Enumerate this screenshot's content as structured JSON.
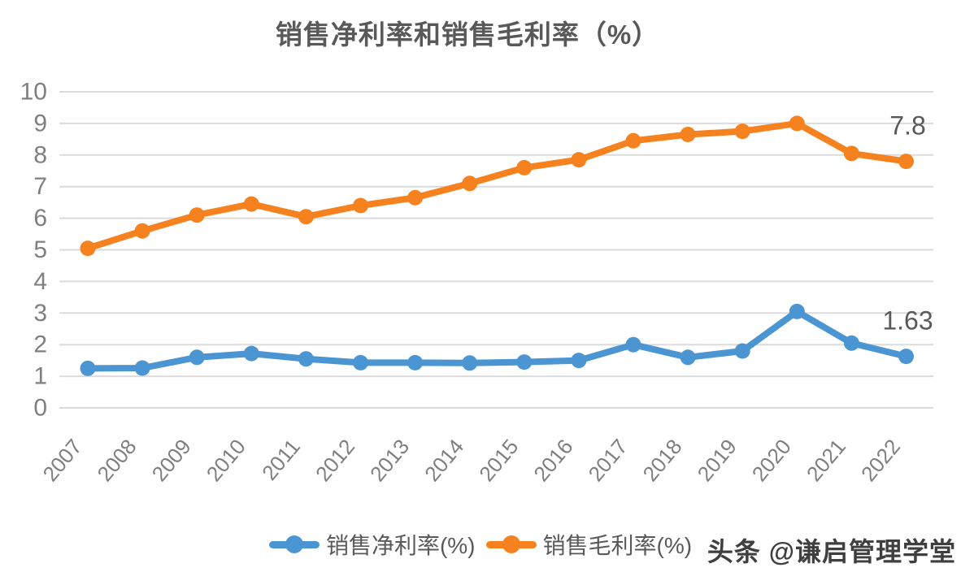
{
  "chart_data": {
    "type": "line",
    "title": "销售净利率和销售毛利率（%）",
    "categories": [
      "2007",
      "2008",
      "2009",
      "2010",
      "2011",
      "2012",
      "2013",
      "2014",
      "2015",
      "2016",
      "2017",
      "2018",
      "2019",
      "2020",
      "2021",
      "2022"
    ],
    "series": [
      {
        "name": "销售净利率(%)",
        "color": "#4B96D2",
        "values": [
          1.25,
          1.26,
          1.6,
          1.72,
          1.55,
          1.43,
          1.43,
          1.42,
          1.45,
          1.5,
          2.0,
          1.6,
          1.8,
          3.05,
          2.05,
          1.63
        ],
        "end_label": "1.63"
      },
      {
        "name": "销售毛利率(%)",
        "color": "#F5821F",
        "values": [
          5.05,
          5.6,
          6.1,
          6.45,
          6.05,
          6.4,
          6.65,
          7.1,
          7.6,
          7.85,
          8.45,
          8.65,
          8.75,
          9.0,
          8.05,
          7.8
        ],
        "end_label": "7.8"
      }
    ],
    "xlabel": "",
    "ylabel": "",
    "ylim": [
      0,
      10
    ],
    "y_ticks": [
      0,
      1,
      2,
      3,
      4,
      5,
      6,
      7,
      8,
      9,
      10
    ],
    "grid": "horizontal",
    "legend_position": "bottom"
  },
  "watermark": {
    "text": "头条 @谦启管理学堂"
  },
  "colors": {
    "grid_line": "#DBDBDB",
    "axis_text": "#7F7F7F",
    "title_text": "#595959",
    "annotation_text": "#595959",
    "background": "#FFFFFF"
  }
}
